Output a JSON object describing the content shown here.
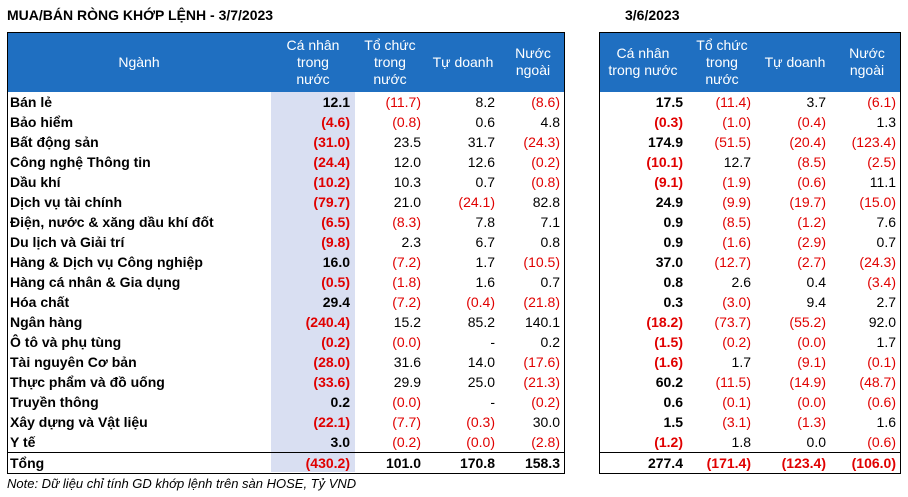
{
  "title_left": "MUA/BÁN RÒNG KHỚP LỆNH - 3/7/2023",
  "title_right": "3/6/2023",
  "headers": {
    "sector": "Ngành",
    "ca_nhan": "Cá nhân\ntrong\nnước",
    "to_chuc": "Tổ chức\ntrong\nnước",
    "tu_doanh": "Tự doanh",
    "nuoc_ngoai": "Nước\nngoài",
    "ca_nhan_r": "Cá nhân\ntrong nước",
    "to_chuc_r": "Tổ chức\ntrong\nnước",
    "tu_doanh_r": "Tự doanh",
    "nuoc_ngoai_r": "Nước\nngoài"
  },
  "rows": [
    {
      "sector": "Bán lẻ",
      "l": [
        "12.1",
        "(11.7)",
        "8.2",
        "(8.6)"
      ],
      "r": [
        "17.5",
        "(11.4)",
        "3.7",
        "(6.1)"
      ]
    },
    {
      "sector": "Bảo hiểm",
      "l": [
        "(4.6)",
        "(0.8)",
        "0.6",
        "4.8"
      ],
      "r": [
        "(0.3)",
        "(1.0)",
        "(0.4)",
        "1.3"
      ]
    },
    {
      "sector": "Bất động sản",
      "l": [
        "(31.0)",
        "23.5",
        "31.7",
        "(24.3)"
      ],
      "r": [
        "174.9",
        "(51.5)",
        "(20.4)",
        "(123.4)"
      ]
    },
    {
      "sector": "Công nghệ Thông tin",
      "l": [
        "(24.4)",
        "12.0",
        "12.6",
        "(0.2)"
      ],
      "r": [
        "(10.1)",
        "12.7",
        "(8.5)",
        "(2.5)"
      ]
    },
    {
      "sector": "Dầu khí",
      "l": [
        "(10.2)",
        "10.3",
        "0.7",
        "(0.8)"
      ],
      "r": [
        "(9.1)",
        "(1.9)",
        "(0.6)",
        "11.1"
      ]
    },
    {
      "sector": "Dịch vụ tài chính",
      "l": [
        "(79.7)",
        "21.0",
        "(24.1)",
        "82.8"
      ],
      "r": [
        "24.9",
        "(9.9)",
        "(19.7)",
        "(15.0)"
      ]
    },
    {
      "sector": "Điện, nước & xăng dầu khí đốt",
      "l": [
        "(6.5)",
        "(8.3)",
        "7.8",
        "7.1"
      ],
      "r": [
        "0.9",
        "(8.5)",
        "(1.2)",
        "7.6"
      ]
    },
    {
      "sector": "Du lịch và Giải trí",
      "l": [
        "(9.8)",
        "2.3",
        "6.7",
        "0.8"
      ],
      "r": [
        "0.9",
        "(1.6)",
        "(2.9)",
        "0.7"
      ]
    },
    {
      "sector": "Hàng & Dịch vụ Công nghiệp",
      "l": [
        "16.0",
        "(7.2)",
        "1.7",
        "(10.5)"
      ],
      "r": [
        "37.0",
        "(12.7)",
        "(2.7)",
        "(24.3)"
      ]
    },
    {
      "sector": "Hàng cá nhân & Gia dụng",
      "l": [
        "(0.5)",
        "(1.8)",
        "1.6",
        "0.7"
      ],
      "r": [
        "0.8",
        "2.6",
        "0.4",
        "(3.4)"
      ]
    },
    {
      "sector": "Hóa chất",
      "l": [
        "29.4",
        "(7.2)",
        "(0.4)",
        "(21.8)"
      ],
      "r": [
        "0.3",
        "(3.0)",
        "9.4",
        "2.7"
      ]
    },
    {
      "sector": "Ngân hàng",
      "l": [
        "(240.4)",
        "15.2",
        "85.2",
        "140.1"
      ],
      "r": [
        "(18.2)",
        "(73.7)",
        "(55.2)",
        "92.0"
      ]
    },
    {
      "sector": "Ô tô và phụ tùng",
      "l": [
        "(0.2)",
        "(0.0)",
        "-",
        "0.2"
      ],
      "r": [
        "(1.5)",
        "(0.2)",
        "(0.0)",
        "1.7"
      ]
    },
    {
      "sector": "Tài nguyên Cơ bản",
      "l": [
        "(28.0)",
        "31.6",
        "14.0",
        "(17.6)"
      ],
      "r": [
        "(1.6)",
        "1.7",
        "(9.1)",
        "(0.1)"
      ]
    },
    {
      "sector": "Thực phẩm và đồ uống",
      "l": [
        "(33.6)",
        "29.9",
        "25.0",
        "(21.3)"
      ],
      "r": [
        "60.2",
        "(11.5)",
        "(14.9)",
        "(48.7)"
      ]
    },
    {
      "sector": "Truyền thông",
      "l": [
        "0.2",
        "(0.0)",
        "-",
        "(0.2)"
      ],
      "r": [
        "0.6",
        "(0.1)",
        "(0.0)",
        "(0.6)"
      ]
    },
    {
      "sector": "Xây dựng và Vật liệu",
      "l": [
        "(22.1)",
        "(7.7)",
        "(0.3)",
        "30.0"
      ],
      "r": [
        "1.5",
        "(3.1)",
        "(1.3)",
        "1.6"
      ]
    },
    {
      "sector": "Y tế",
      "l": [
        "3.0",
        "(0.2)",
        "(0.0)",
        "(2.8)"
      ],
      "r": [
        "(1.2)",
        "1.8",
        "0.0",
        "(0.6)"
      ]
    }
  ],
  "total": {
    "sector": "Tổng",
    "l": [
      "(430.2)",
      "101.0",
      "170.8",
      "158.3"
    ],
    "r": [
      "277.4",
      "(171.4)",
      "(123.4)",
      "(106.0)"
    ]
  },
  "note": "Note: Dữ liệu chỉ tính GD khớp lệnh trên sàn HOSE, Tỷ VND",
  "colors": {
    "header_bg": "#1f6fc1",
    "highlight": "#d9dff2",
    "negative": "#e00000"
  }
}
